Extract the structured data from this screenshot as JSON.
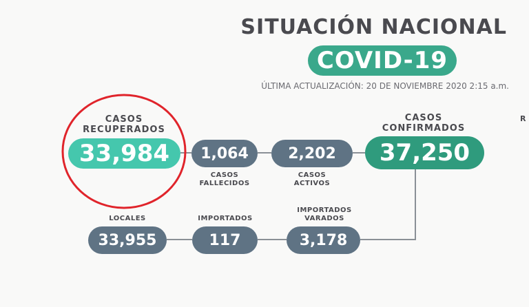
{
  "header": {
    "title": "SITUACIÓN NACIONAL",
    "subtitle": "COVID-19",
    "update": "ÚLTIMA ACTUALIZACIÓN: 20 DE NOVIEMBRE 2020 2:15 a.m."
  },
  "stats": {
    "recuperados": {
      "label1": "CASOS",
      "label2": "RECUPERADOS",
      "value": "33,984"
    },
    "fallecidos": {
      "label1": "CASOS",
      "label2": "FALLECIDOS",
      "value": "1,064"
    },
    "activos": {
      "label1": "CASOS",
      "label2": "ACTIVOS",
      "value": "2,202"
    },
    "confirmados": {
      "label1": "CASOS",
      "label2": "CONFIRMADOS",
      "value": "37,250"
    },
    "locales": {
      "label": "LOCALES",
      "value": "33,955"
    },
    "importados": {
      "label": "IMPORTADOS",
      "value": "117"
    },
    "importados_varados": {
      "label1": "IMPORTADOS",
      "label2": "VARADOS",
      "value": "3,178"
    }
  },
  "cut_text": "R",
  "colors": {
    "teal_dark": "#2f9b7d",
    "teal_light": "#45c7ad",
    "gray_pill": "#5f7384",
    "annotation_circle": "#e0242b"
  }
}
